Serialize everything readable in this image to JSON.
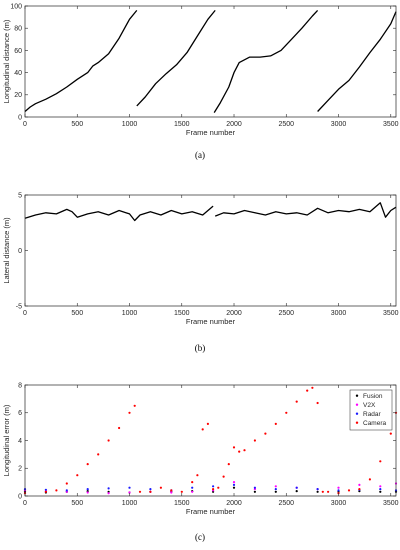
{
  "chart_data": [
    {
      "type": "line",
      "caption": "(a)",
      "xlabel": "Frame number",
      "ylabel": "Longitudinal distance (m)",
      "xlim": [
        0,
        3550
      ],
      "ylim": [
        0,
        100
      ],
      "xticks": [
        0,
        500,
        1000,
        1500,
        2000,
        2500,
        3000,
        3500
      ],
      "yticks": [
        0,
        20,
        40,
        60,
        80,
        100
      ],
      "grid": false,
      "series": [
        {
          "color": "#000000",
          "x": [
            0,
            50,
            100,
            200,
            300,
            400,
            500,
            600,
            650,
            700,
            800,
            900,
            1000,
            1070
          ],
          "y": [
            5,
            9,
            12,
            16,
            21,
            27,
            34,
            40,
            46,
            49,
            57,
            71,
            88,
            96
          ]
        },
        {
          "color": "#000000",
          "x": [
            1070,
            1150,
            1250,
            1350,
            1450,
            1550,
            1650,
            1750,
            1820
          ],
          "y": [
            10,
            18,
            30,
            39,
            47,
            58,
            73,
            88,
            96
          ]
        },
        {
          "color": "#000000",
          "x": [
            1810,
            1870,
            1950,
            2000,
            2050,
            2150,
            2250,
            2350,
            2450,
            2550,
            2650,
            2750,
            2800
          ],
          "y": [
            4,
            13,
            27,
            40,
            49,
            54,
            54,
            55,
            60,
            70,
            80,
            91,
            96
          ]
        },
        {
          "color": "#000000",
          "x": [
            2800,
            2900,
            3000,
            3100,
            3200,
            3300,
            3400,
            3500,
            3550
          ],
          "y": [
            5,
            15,
            25,
            33,
            45,
            58,
            70,
            84,
            95
          ]
        }
      ]
    },
    {
      "type": "line",
      "caption": "(b)",
      "xlabel": "Frame number",
      "ylabel": "Lateral distance (m)",
      "xlim": [
        0,
        3550
      ],
      "ylim": [
        -5,
        5
      ],
      "xticks": [
        0,
        500,
        1000,
        1500,
        2000,
        2500,
        3000,
        3500
      ],
      "yticks": [
        -5,
        0,
        5
      ],
      "grid": false,
      "series": [
        {
          "color": "#000000",
          "x": [
            0,
            100,
            200,
            300,
            400,
            450,
            500,
            600,
            700,
            800,
            900,
            1000,
            1050,
            1100,
            1200,
            1300,
            1400,
            1500,
            1600,
            1700,
            1800
          ],
          "y": [
            2.9,
            3.2,
            3.4,
            3.3,
            3.7,
            3.5,
            3.0,
            3.3,
            3.5,
            3.2,
            3.6,
            3.3,
            2.7,
            3.2,
            3.5,
            3.2,
            3.6,
            3.3,
            3.5,
            3.2,
            4.0
          ]
        },
        {
          "color": "#000000",
          "x": [
            1820,
            1900,
            2000,
            2100,
            2200,
            2300,
            2400,
            2500,
            2600,
            2700,
            2800,
            2900,
            3000,
            3100,
            3200,
            3300,
            3400,
            3450,
            3500,
            3550
          ],
          "y": [
            3.1,
            3.4,
            3.3,
            3.6,
            3.4,
            3.2,
            3.5,
            3.3,
            3.4,
            3.2,
            3.8,
            3.4,
            3.6,
            3.5,
            3.7,
            3.5,
            4.3,
            3.0,
            3.6,
            3.9
          ]
        }
      ]
    },
    {
      "type": "scatter",
      "caption": "(c)",
      "xlabel": "Frame number",
      "ylabel": "Longitudinal error (m)",
      "xlim": [
        0,
        3550
      ],
      "ylim": [
        0,
        8
      ],
      "xticks": [
        0,
        500,
        1000,
        1500,
        2000,
        2500,
        3000,
        3500
      ],
      "yticks": [
        0,
        2,
        4,
        6,
        8
      ],
      "grid": false,
      "legend": "top-right",
      "series": [
        {
          "name": "Fusion",
          "color": "#000000",
          "x": [
            0,
            200,
            400,
            600,
            800,
            1000,
            1200,
            1400,
            1600,
            1800,
            2000,
            2200,
            2400,
            2600,
            2800,
            3000,
            3200,
            3400,
            3550
          ],
          "y": [
            0.3,
            0.25,
            0.3,
            0.35,
            0.3,
            0.25,
            0.3,
            0.3,
            0.35,
            0.3,
            0.6,
            0.3,
            0.3,
            0.35,
            0.3,
            0.3,
            0.35,
            0.3,
            0.3
          ]
        },
        {
          "name": "V2X",
          "color": "#ff00ff",
          "x": [
            0,
            200,
            400,
            600,
            800,
            1000,
            1200,
            1400,
            1600,
            1800,
            2000,
            2200,
            2400,
            2600,
            2800,
            3000,
            3200,
            3400,
            3550
          ],
          "y": [
            0.4,
            0.35,
            0.3,
            0.25,
            0.2,
            0.25,
            0.3,
            0.25,
            0.3,
            0.4,
            1.0,
            0.5,
            0.7,
            0.6,
            0.5,
            0.6,
            0.8,
            0.7,
            0.9
          ]
        },
        {
          "name": "Radar",
          "color": "#1a1aff",
          "x": [
            0,
            200,
            400,
            600,
            800,
            1000,
            1200,
            1400,
            1600,
            1800,
            2000,
            2200,
            2400,
            2600,
            2800,
            3000,
            3200,
            3400,
            3550
          ],
          "y": [
            0.5,
            0.45,
            0.4,
            0.5,
            0.55,
            0.6,
            0.5,
            0.4,
            0.6,
            0.7,
            0.8,
            0.6,
            0.5,
            0.6,
            0.5,
            0.4,
            0.45,
            0.5,
            0.4
          ]
        },
        {
          "name": "Camera",
          "color": "#ff0000",
          "x": [
            0,
            200,
            300,
            400,
            500,
            600,
            700,
            800,
            900,
            1000,
            1050,
            1100,
            1200,
            1300,
            1400,
            1500,
            1600,
            1650,
            1700,
            1750,
            1800,
            1850,
            1900,
            1950,
            2000,
            2050,
            2100,
            2200,
            2300,
            2400,
            2500,
            2600,
            2700,
            2750,
            2800,
            2850,
            2900,
            3000,
            3100,
            3200,
            3300,
            3400,
            3500,
            3550
          ],
          "y": [
            0.2,
            0.3,
            0.4,
            0.9,
            1.5,
            2.3,
            3.0,
            4.0,
            4.9,
            6.0,
            6.5,
            0.3,
            0.3,
            0.6,
            0.4,
            0.3,
            1.0,
            1.5,
            4.8,
            5.2,
            0.5,
            0.6,
            1.4,
            2.3,
            3.5,
            3.2,
            3.3,
            4.0,
            4.5,
            5.2,
            6.0,
            6.8,
            7.6,
            7.8,
            6.7,
            0.3,
            0.3,
            0.2,
            0.4,
            0.5,
            1.2,
            2.5,
            4.5,
            6.0
          ]
        }
      ]
    }
  ]
}
